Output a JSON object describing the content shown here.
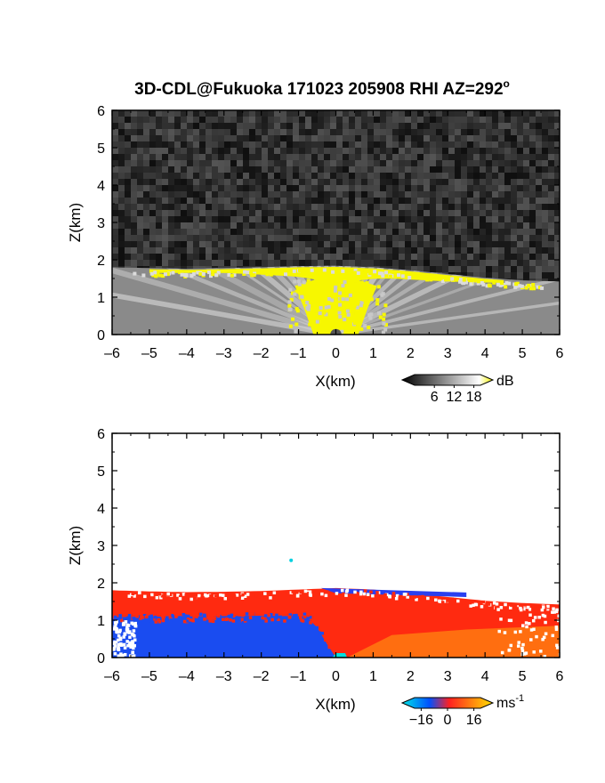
{
  "figure": {
    "title": "3D-CDL@Fukuoka 171023 205908 RHI AZ=292",
    "title_sup": "o"
  },
  "chart_data": [
    {
      "type": "heatmap",
      "panel": "reflectivity",
      "xlabel": "X(km)",
      "ylabel": "Z(km)",
      "xlim": [
        -6,
        6
      ],
      "ylim": [
        0,
        6
      ],
      "x_ticks": [
        "-6",
        "-5",
        "-4",
        "-3",
        "-2",
        "-1",
        "0",
        "1",
        "2",
        "3",
        "4",
        "5",
        "6"
      ],
      "y_ticks": [
        "0",
        "1",
        "2",
        "3",
        "4",
        "5",
        "6"
      ],
      "colorbar": {
        "unit": "dB",
        "unit_sup": "",
        "tick_labels": [
          "6",
          "12",
          "18"
        ],
        "tick_values": [
          6,
          12,
          18
        ],
        "range": [
          0,
          20
        ],
        "colors": [
          "#000000",
          "#ffffff",
          "#f5f500"
        ]
      },
      "top_boundary_km": [
        [
          -6,
          1.8
        ],
        [
          -5,
          1.78
        ],
        [
          -4,
          1.76
        ],
        [
          -3,
          1.78
        ],
        [
          -2,
          1.8
        ],
        [
          -1,
          1.83
        ],
        [
          0,
          1.84
        ],
        [
          1,
          1.8
        ],
        [
          2,
          1.72
        ],
        [
          3,
          1.62
        ],
        [
          4,
          1.52
        ],
        [
          5,
          1.45
        ],
        [
          6,
          1.42
        ]
      ],
      "yellow_band_km": {
        "x_range": [
          -5,
          4.5
        ],
        "z_bottom": [
          [
            -5,
            1.65
          ],
          [
            -3,
            1.65
          ],
          [
            -1.5,
            1.58
          ],
          [
            0,
            1.55
          ],
          [
            1.5,
            1.5
          ],
          [
            3,
            1.42
          ],
          [
            4.5,
            1.38
          ]
        ]
      },
      "yellow_cone_km": {
        "center_x": 0,
        "half_width_at_base": 0.6,
        "half_width_at_top": 1.1,
        "top_z": 1.3
      }
    },
    {
      "type": "heatmap",
      "panel": "doppler_velocity",
      "xlabel": "X(km)",
      "ylabel": "Z(km)",
      "xlim": [
        -6,
        6
      ],
      "ylim": [
        0,
        6
      ],
      "x_ticks": [
        "-6",
        "-5",
        "-4",
        "-3",
        "-2",
        "-1",
        "0",
        "1",
        "2",
        "3",
        "4",
        "5",
        "6"
      ],
      "y_ticks": [
        "0",
        "1",
        "2",
        "3",
        "4",
        "5",
        "6"
      ],
      "colorbar": {
        "unit": "ms",
        "unit_sup": "-1",
        "tick_labels": [
          "−16",
          "0",
          "16"
        ],
        "tick_values": [
          -16,
          0,
          16
        ],
        "range": [
          -20,
          20
        ],
        "colors": [
          "#00e6e6",
          "#0050ff",
          "#ff2020",
          "#ffe000"
        ]
      },
      "top_boundary_km": [
        [
          -6,
          1.8
        ],
        [
          -5,
          1.77
        ],
        [
          -4,
          1.75
        ],
        [
          -3,
          1.76
        ],
        [
          -2,
          1.78
        ],
        [
          -1,
          1.82
        ],
        [
          0,
          1.86
        ],
        [
          1,
          1.82
        ],
        [
          2,
          1.72
        ],
        [
          3,
          1.62
        ],
        [
          4,
          1.52
        ],
        [
          5,
          1.46
        ],
        [
          6,
          1.42
        ]
      ],
      "negative_region_km": {
        "description_x_range": [
          -6,
          0
        ],
        "top": [
          [
            -6,
            1.08
          ],
          [
            -4,
            1.1
          ],
          [
            -2,
            1.12
          ],
          [
            -0.8,
            1.1
          ],
          [
            -0.5,
            0.8
          ],
          [
            -0.2,
            0.3
          ],
          [
            0,
            0
          ]
        ]
      },
      "negative_strip_aloft_km": {
        "x_range": [
          0,
          3.5
        ],
        "z_range": [
          1.72,
          1.86
        ]
      },
      "isolated_point_km": [
        [
          -1.2,
          2.6
        ]
      ]
    }
  ]
}
